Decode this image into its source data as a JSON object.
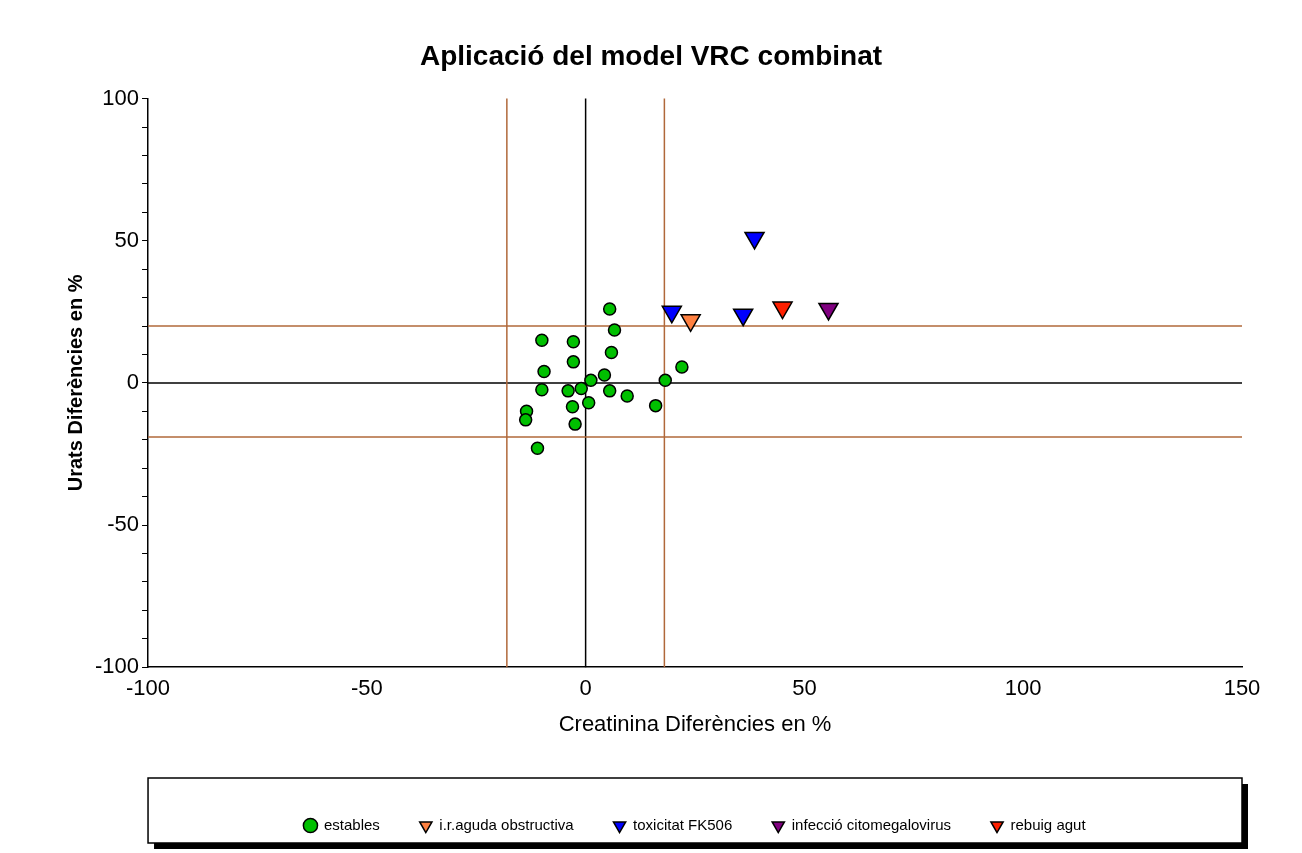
{
  "chart_data": {
    "type": "scatter",
    "title": "Aplicació del model VRC combinat",
    "xlabel": "Creatinina Diferències en %",
    "ylabel": "Urats Diferències en %",
    "xlim": [
      -100,
      150
    ],
    "xticks": [
      -100,
      -50,
      0,
      50,
      100,
      150
    ],
    "ylim": [
      -100,
      100
    ],
    "yticks": [
      -100,
      {
        "value": -90,
        "label": null
      },
      {
        "value": -80,
        "label": null
      },
      {
        "value": -70,
        "label": null
      },
      {
        "value": -60,
        "label": null
      },
      -50,
      {
        "value": -40,
        "label": null
      },
      {
        "value": -30,
        "label": null
      },
      {
        "value": -20,
        "label": null
      },
      {
        "value": -10,
        "label": null
      },
      0,
      {
        "value": 10,
        "label": null
      },
      {
        "value": 20,
        "label": null
      },
      {
        "value": 30,
        "label": null
      },
      {
        "value": 40,
        "label": null
      },
      50,
      {
        "value": 60,
        "label": null
      },
      {
        "value": 70,
        "label": null
      },
      {
        "value": 80,
        "label": null
      },
      {
        "value": 90,
        "label": null
      },
      100
    ],
    "grid": false,
    "legend": "bottom",
    "ref_lines": [
      {
        "axis": "x",
        "value": 0,
        "color": "#000000"
      },
      {
        "axis": "y",
        "value": 0,
        "color": "#000000"
      },
      {
        "axis": "x",
        "value": -18,
        "color": "#b0683a"
      },
      {
        "axis": "x",
        "value": 18,
        "color": "#b0683a"
      },
      {
        "axis": "y",
        "value": 20,
        "color": "#b0683a"
      },
      {
        "axis": "y",
        "value": -19,
        "color": "#b0683a"
      }
    ],
    "series": [
      {
        "name": "estables",
        "color": "#00c000",
        "marker": "circle",
        "x": [
          5.5,
          6.6,
          -10,
          -2.8,
          -2.8,
          5.9,
          -9.5,
          -10,
          -4,
          1.2,
          4.3,
          5.5,
          9.5,
          0.7,
          -3,
          -2.4,
          -13.5,
          -13.7,
          -11,
          16,
          18.2,
          22,
          -1
        ],
        "values": [
          26,
          18.6,
          15,
          14.5,
          7.4,
          10.7,
          4,
          -2.4,
          -2.8,
          0.9,
          2.8,
          -2.8,
          -4.6,
          -7,
          -8.4,
          -14.5,
          -10,
          -13,
          -23,
          -8,
          0.9,
          5.6,
          -2
        ]
      },
      {
        "name": "i.r.aguda obstructiva",
        "color": "#ff8040",
        "marker": "triangle",
        "x": [
          24
        ],
        "values": [
          22
        ]
      },
      {
        "name": "toxicitat FK506",
        "color": "#0000ff",
        "marker": "triangle",
        "x": [
          38.6,
          19.7,
          36
        ],
        "values": [
          51,
          25,
          24
        ]
      },
      {
        "name": "infecció citomegalovirus",
        "color": "#800080",
        "marker": "triangle",
        "x": [
          55.5
        ],
        "values": [
          26
        ]
      },
      {
        "name": "rebuig agut",
        "color": "#ff2000",
        "marker": "triangle",
        "x": [
          45
        ],
        "values": [
          26.5
        ]
      }
    ]
  }
}
